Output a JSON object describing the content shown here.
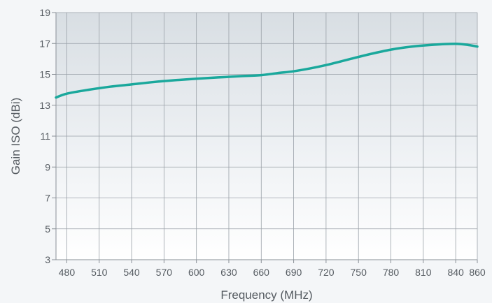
{
  "chart_data": {
    "type": "line",
    "title": "",
    "xlabel": "Frequency (MHz)",
    "ylabel": "Gain ISO (dBi)",
    "xlim": [
      470,
      860
    ],
    "ylim": [
      3,
      19
    ],
    "x_ticks": [
      "480",
      "510",
      "540",
      "570",
      "600",
      "630",
      "660",
      "690",
      "720",
      "750",
      "780",
      "810",
      "840",
      "860"
    ],
    "y_ticks": [
      "3",
      "5",
      "7",
      "9",
      "11",
      "13",
      "15",
      "17",
      "19"
    ],
    "grid": true,
    "legend": "none",
    "series": [
      {
        "color": "#1aa89c",
        "x": [
          470,
          480,
          500,
          520,
          540,
          560,
          580,
          600,
          620,
          640,
          660,
          675,
          690,
          705,
          720,
          740,
          760,
          780,
          800,
          820,
          840,
          852,
          860
        ],
        "y": [
          13.5,
          13.75,
          14.0,
          14.2,
          14.35,
          14.5,
          14.62,
          14.72,
          14.8,
          14.88,
          14.95,
          15.08,
          15.2,
          15.38,
          15.6,
          15.95,
          16.3,
          16.6,
          16.8,
          16.92,
          16.98,
          16.9,
          16.8
        ]
      }
    ]
  }
}
